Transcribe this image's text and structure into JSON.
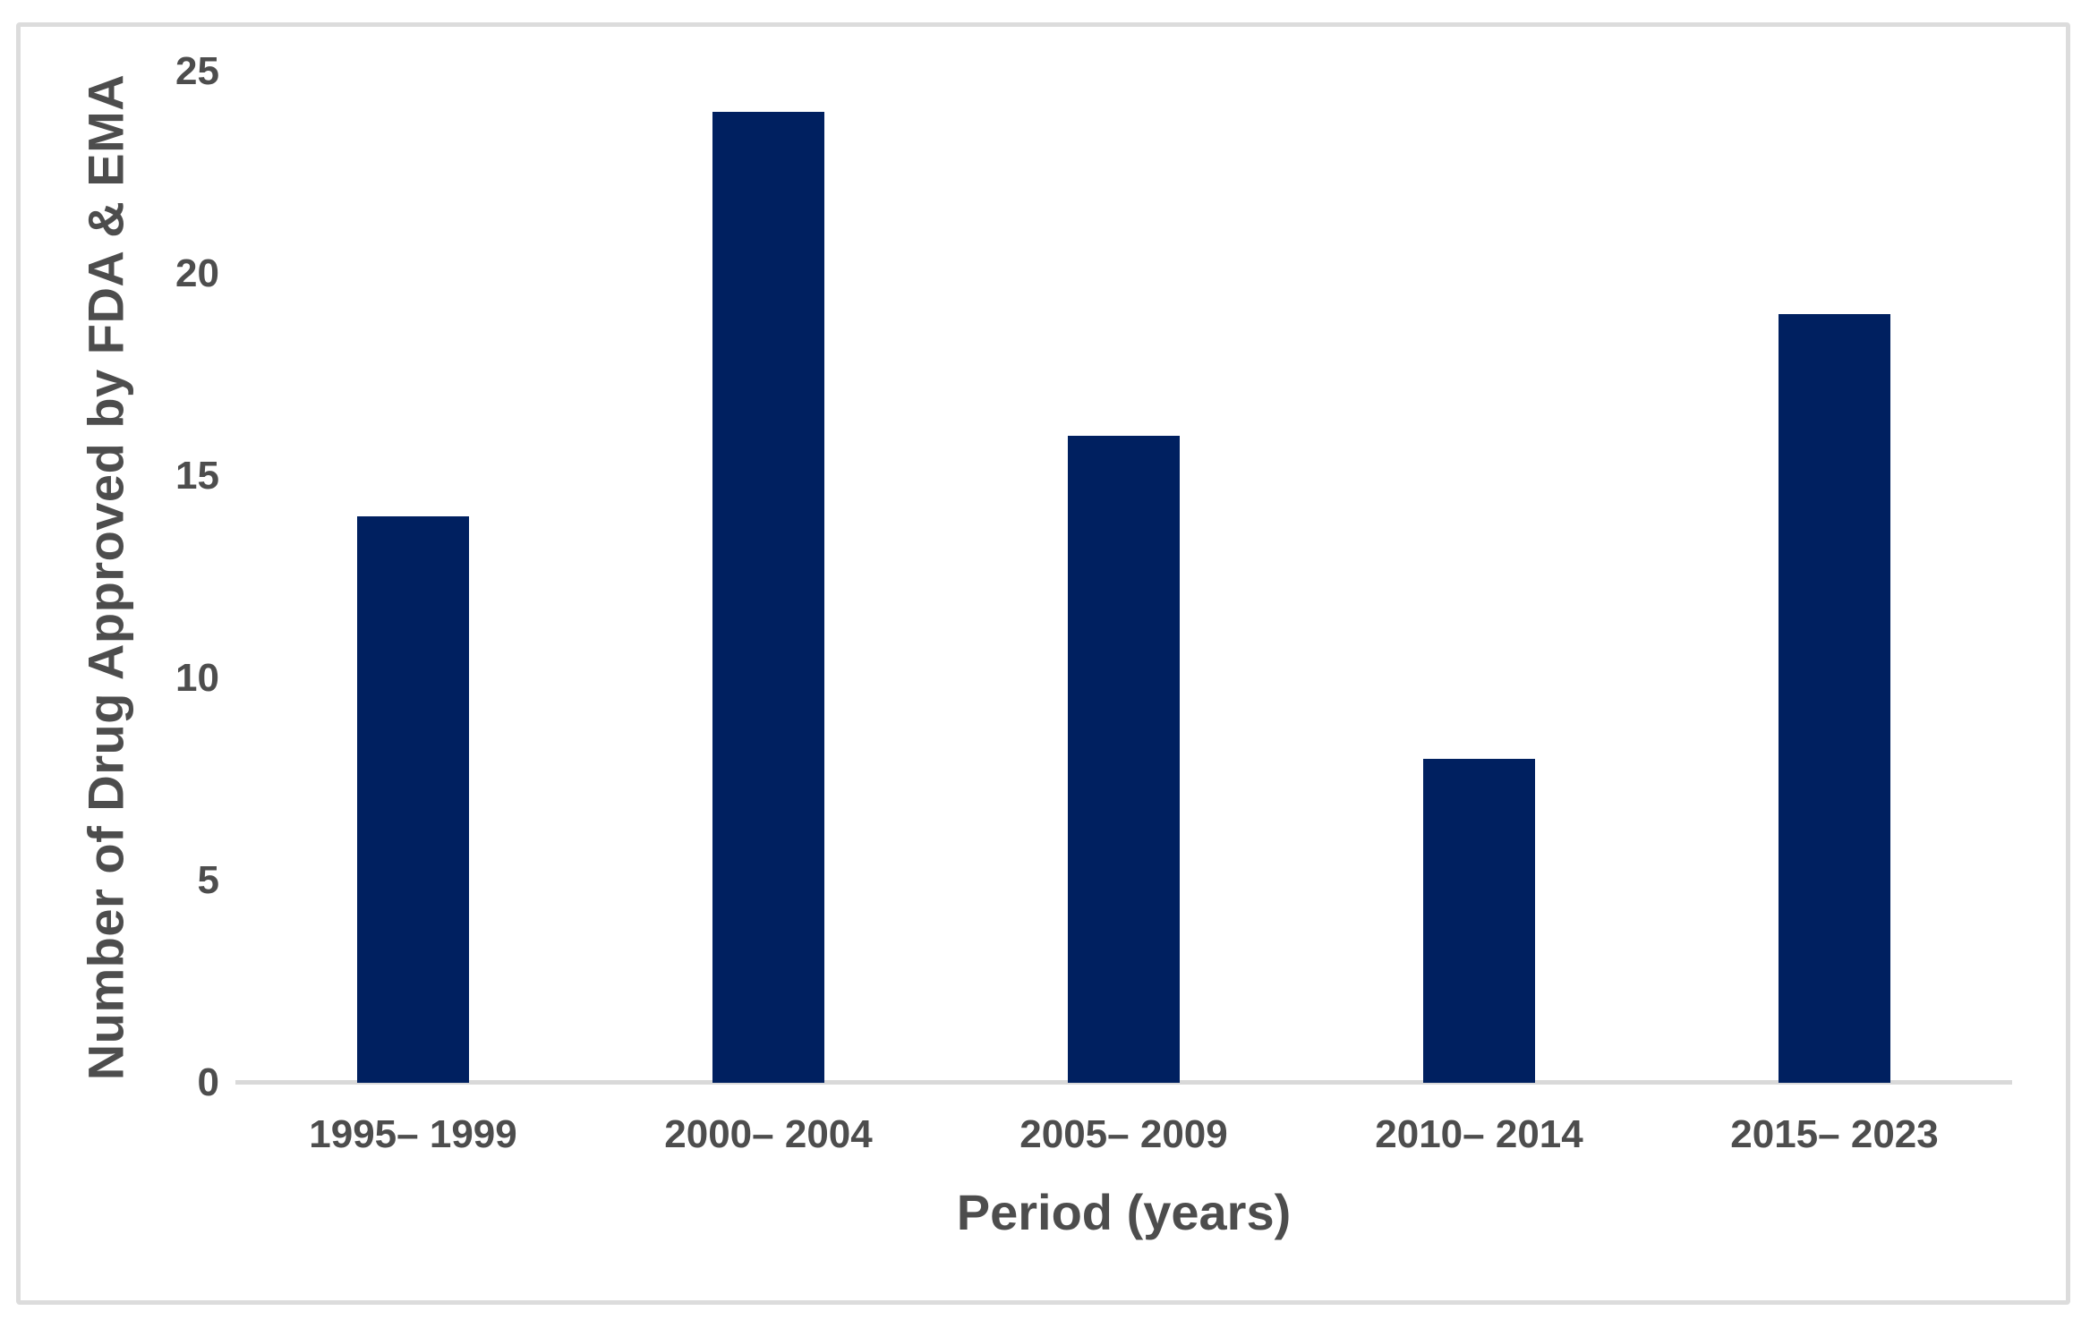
{
  "chart_data": {
    "type": "bar",
    "title": "",
    "categories": [
      "1995– 1999",
      "2000– 2004",
      "2005– 2009",
      "2010– 2014",
      "2015– 2023"
    ],
    "values": [
      14,
      24,
      16,
      8,
      19
    ],
    "xlabel": "Period (years)",
    "ylabel": "Number of Drug Approved by FDA & EMA",
    "ylim": [
      0,
      25
    ],
    "yticks": [
      0,
      5,
      10,
      15,
      20,
      25
    ],
    "grid": "off",
    "legend": "none",
    "bar_color": "#002060",
    "label_color": "#4d4d4d",
    "axis_line_color": "#d9d9d9",
    "frame_border_color": "#dcdcdc"
  }
}
